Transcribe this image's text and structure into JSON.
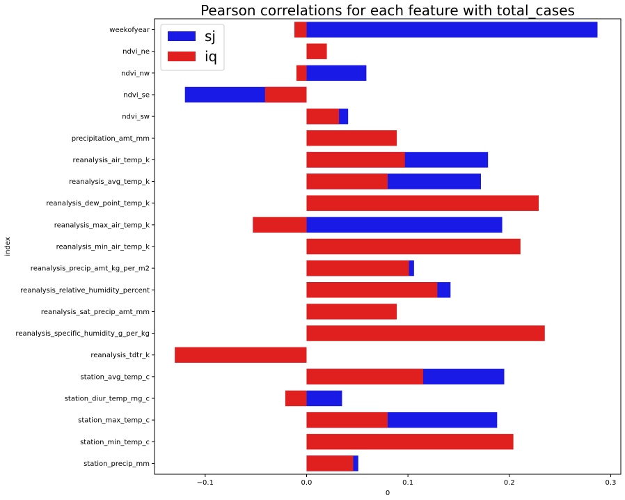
{
  "chart_data": {
    "type": "bar",
    "orientation": "horizontal",
    "title": "Pearson correlations for each feature with total_cases",
    "xlabel": "0",
    "ylabel": "index",
    "xlim": [
      -0.15,
      0.31
    ],
    "xticks": [
      -0.1,
      0.0,
      0.1,
      0.2,
      0.3
    ],
    "xtick_labels": [
      "−0.1",
      "0.0",
      "0.1",
      "0.2",
      "0.3"
    ],
    "legend_position": "top-left",
    "grid": false,
    "categories": [
      "weekofyear",
      "ndvi_ne",
      "ndvi_nw",
      "ndvi_se",
      "ndvi_sw",
      "precipitation_amt_mm",
      "reanalysis_air_temp_k",
      "reanalysis_avg_temp_k",
      "reanalysis_dew_point_temp_k",
      "reanalysis_max_air_temp_k",
      "reanalysis_min_air_temp_k",
      "reanalysis_precip_amt_kg_per_m2",
      "reanalysis_relative_humidity_percent",
      "reanalysis_sat_precip_amt_mm",
      "reanalysis_specific_humidity_g_per_kg",
      "reanalysis_tdtr_k",
      "station_avg_temp_c",
      "station_diur_temp_rng_c",
      "station_max_temp_c",
      "station_min_temp_c",
      "station_precip_mm"
    ],
    "series": [
      {
        "name": "sj",
        "color": "#1a1ae6",
        "values": [
          0.287,
          null,
          0.059,
          -0.12,
          0.041,
          null,
          0.179,
          0.172,
          null,
          0.193,
          null,
          0.106,
          0.142,
          null,
          null,
          null,
          0.195,
          0.035,
          0.188,
          null,
          0.051
        ]
      },
      {
        "name": "iq",
        "color": "#e01f1f",
        "values": [
          -0.012,
          0.02,
          -0.01,
          -0.041,
          0.032,
          0.089,
          0.097,
          0.08,
          0.229,
          -0.053,
          0.211,
          0.101,
          0.129,
          0.089,
          0.235,
          -0.13,
          0.115,
          -0.021,
          0.08,
          0.204,
          0.046
        ]
      }
    ]
  }
}
